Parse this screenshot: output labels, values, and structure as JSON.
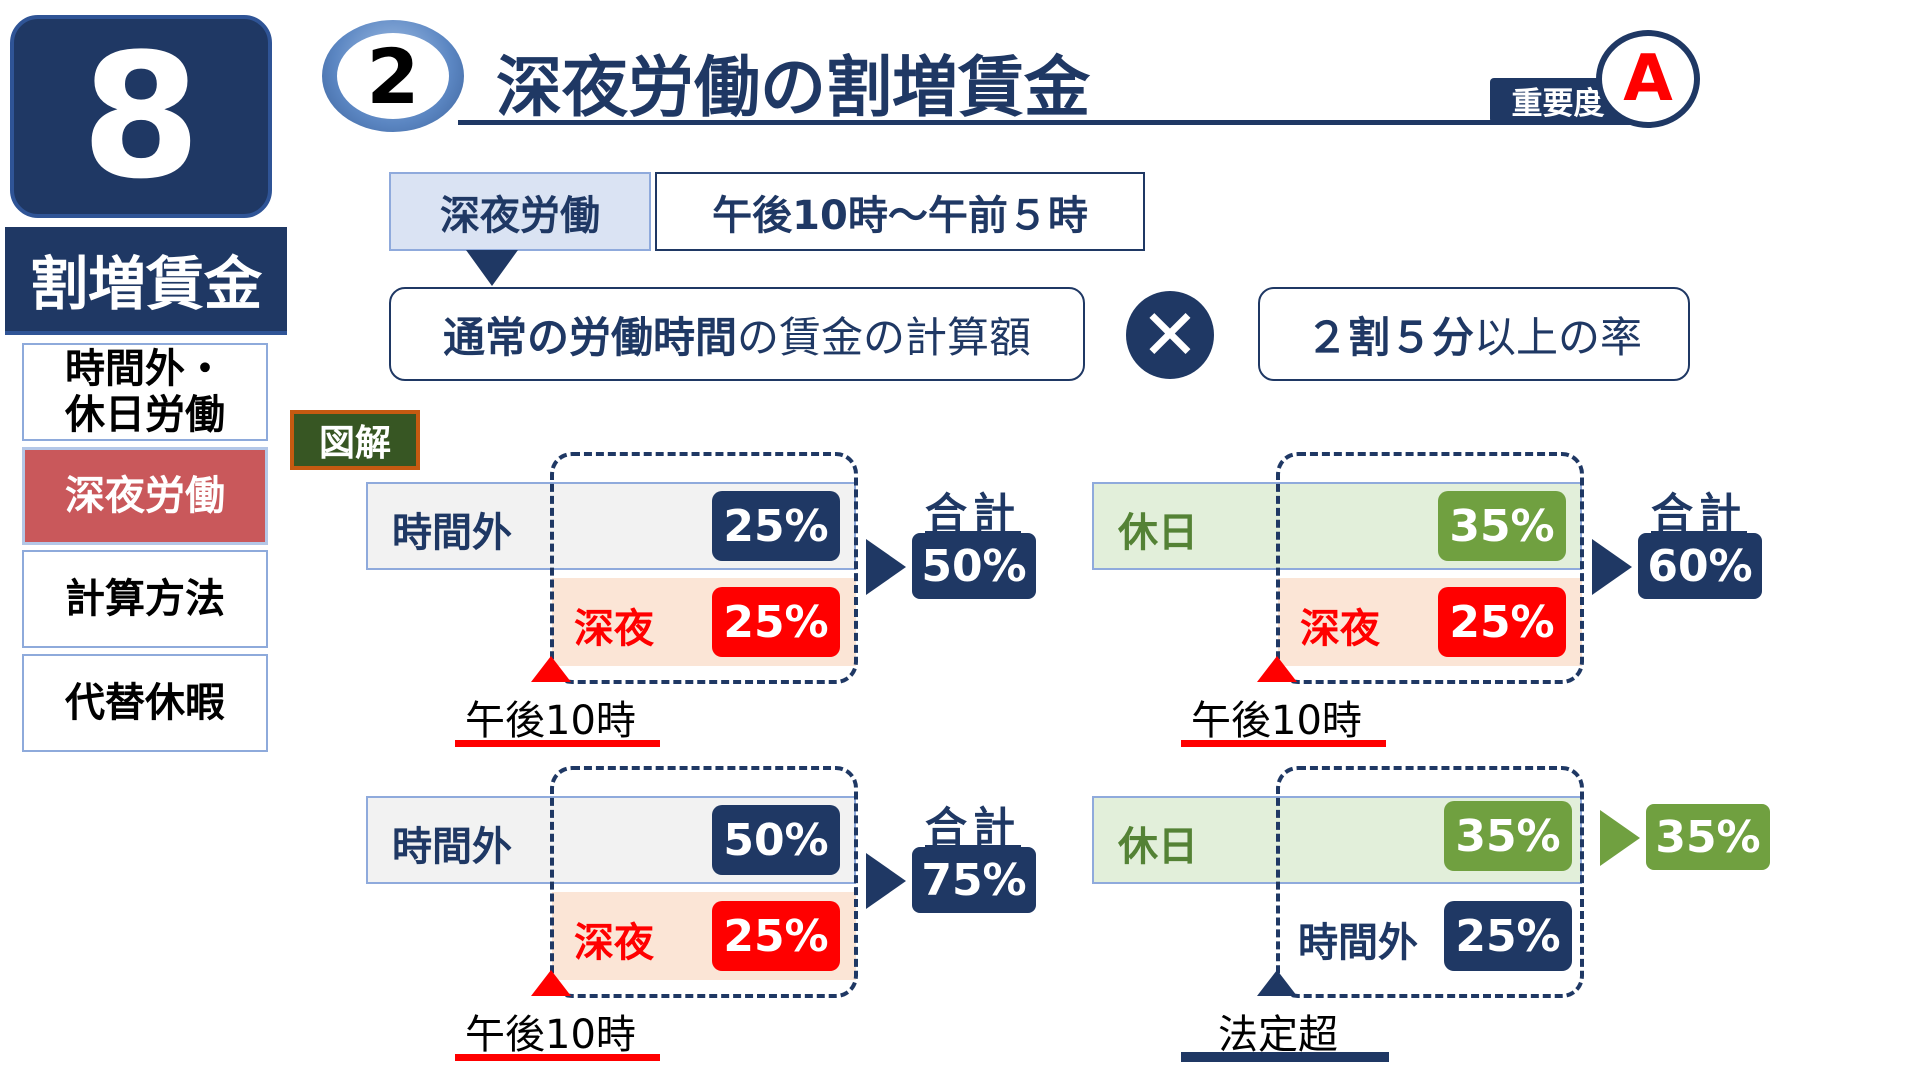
{
  "chapter": {
    "number": "8",
    "label": "割増賃金"
  },
  "sidebar": {
    "items": [
      {
        "label": "時間外・\n休日労働",
        "active": false
      },
      {
        "label": "深夜労働",
        "active": true
      },
      {
        "label": "計算方法",
        "active": false
      },
      {
        "label": "代替休暇",
        "active": false
      }
    ]
  },
  "title": {
    "number": "2",
    "text": "深夜労働の割増賃金",
    "importance_label": "重要度",
    "importance_value": "A"
  },
  "definition": {
    "label": "深夜労働",
    "value": "午後10時～午前５時",
    "formula_bold": "通常の労働時間",
    "formula_rest": "の賃金の計算額",
    "operator": "✕",
    "rate_bold": "２割５分",
    "rate_rest": "以上の率"
  },
  "diagram_label": "図解",
  "diagrams": [
    {
      "base_label": "時間外",
      "base_pct": "25%",
      "night_label": "深夜",
      "night_pct": "25%",
      "total_label": "合計",
      "total": "50%",
      "time_label": "午後10時",
      "color": "blue"
    },
    {
      "base_label": "休日",
      "base_pct": "35%",
      "night_label": "深夜",
      "night_pct": "25%",
      "total_label": "合計",
      "total": "60%",
      "time_label": "午後10時",
      "color": "green"
    },
    {
      "base_label": "時間外",
      "base_pct": "50%",
      "night_label": "深夜",
      "night_pct": "25%",
      "total_label": "合計",
      "total": "75%",
      "time_label": "午後10時",
      "color": "blue"
    },
    {
      "base_label": "休日",
      "base_pct": "35%",
      "overtime_label": "時間外",
      "overtime_pct": "25%",
      "result": "35%",
      "time_label": "法定超",
      "color": "green"
    }
  ]
}
